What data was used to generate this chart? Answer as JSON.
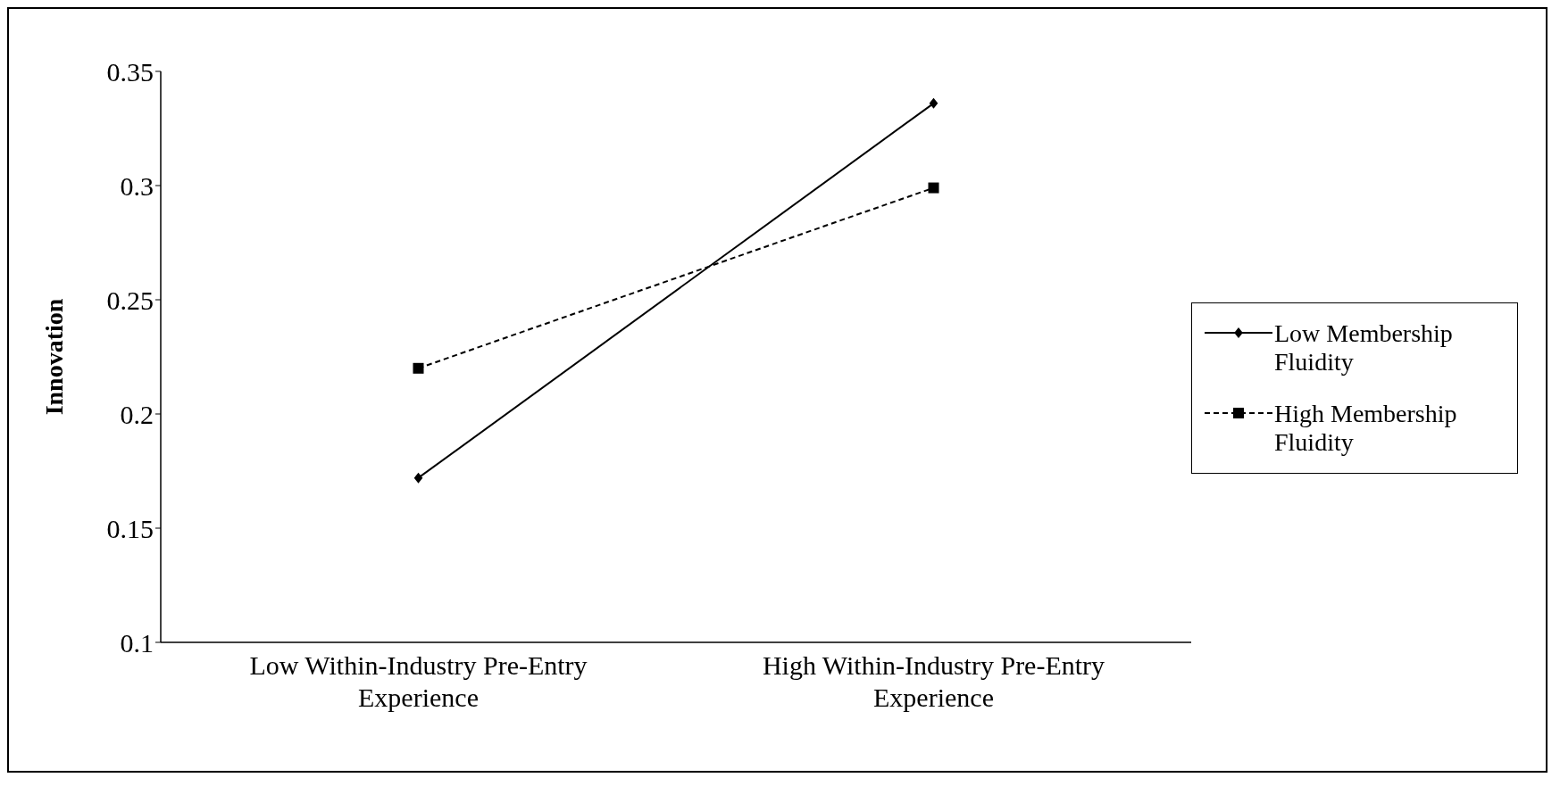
{
  "chart_data": {
    "type": "line",
    "ylabel": "Innovation",
    "categories": [
      "Low Within-Industry Pre-Entry Experience",
      "High Within-Industry Pre-Entry Experience"
    ],
    "series": [
      {
        "name": "Low Membership Fluidity",
        "color": "#000000",
        "values": [
          0.172,
          0.336
        ],
        "marker": "diamond",
        "line_style": "solid"
      },
      {
        "name": "High Membership Fluidity",
        "color": "#000000",
        "values": [
          0.22,
          0.299
        ],
        "marker": "square",
        "line_style": "dashed"
      }
    ],
    "ylim": [
      0.1,
      0.35
    ],
    "yticks": [
      0.1,
      0.15,
      0.2,
      0.25,
      0.3,
      0.35
    ],
    "grid": false,
    "legend": "right"
  }
}
